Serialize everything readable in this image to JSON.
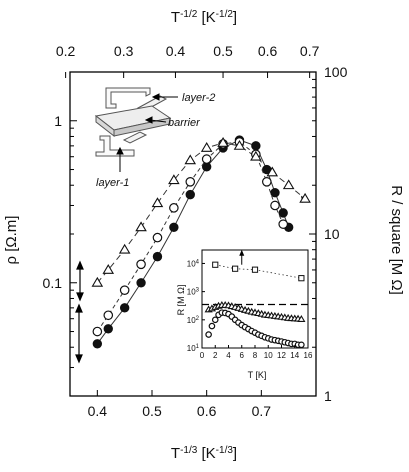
{
  "chart_data": {
    "type": "scatter",
    "main": {
      "x_bottom_label": "T^-1/3 [K^-1/3]",
      "x_bottom_range": [
        0.35,
        0.8
      ],
      "x_bottom_ticks": [
        "0.4",
        "0.5",
        "0.6",
        "0.7"
      ],
      "x_top_label": "T^-1/2 [K^-1/2]",
      "x_top_ticks": [
        "0.2",
        "0.3",
        "0.4",
        "0.5",
        "0.6",
        "0.7"
      ],
      "y_left_label": "ρ [Ω.m]",
      "y_left_scale": "log",
      "y_left_range": [
        0.02,
        2
      ],
      "y_left_ticks": [
        "0.1",
        "1"
      ],
      "y_right_label": "R / square [M Ω]",
      "y_right_scale": "log",
      "y_right_range": [
        1,
        100
      ],
      "y_right_ticks": [
        "1",
        "10",
        "100"
      ],
      "series": [
        {
          "marker": "filled-circle",
          "x": [
            0.4,
            0.42,
            0.45,
            0.48,
            0.51,
            0.54,
            0.57,
            0.6,
            0.63,
            0.66,
            0.69,
            0.71,
            0.725,
            0.74,
            0.75
          ],
          "y": [
            0.042,
            0.052,
            0.07,
            0.1,
            0.145,
            0.22,
            0.35,
            0.52,
            0.68,
            0.76,
            0.7,
            0.5,
            0.36,
            0.27,
            0.22
          ]
        },
        {
          "marker": "open-circle",
          "x": [
            0.4,
            0.42,
            0.45,
            0.48,
            0.51,
            0.54,
            0.57,
            0.6,
            0.63,
            0.66,
            0.69,
            0.71,
            0.725,
            0.74
          ],
          "y": [
            0.05,
            0.063,
            0.09,
            0.13,
            0.19,
            0.29,
            0.42,
            0.58,
            0.72,
            0.74,
            0.62,
            0.42,
            0.3,
            0.23
          ]
        },
        {
          "marker": "open-triangle",
          "x": [
            0.4,
            0.42,
            0.45,
            0.48,
            0.51,
            0.54,
            0.57,
            0.6,
            0.63,
            0.66,
            0.69,
            0.72,
            0.75,
            0.78
          ],
          "y": [
            0.1,
            0.12,
            0.16,
            0.22,
            0.31,
            0.43,
            0.57,
            0.68,
            0.73,
            0.7,
            0.6,
            0.48,
            0.4,
            0.33
          ]
        }
      ]
    },
    "inset": {
      "type": "scatter",
      "xlabel": "T [K]",
      "ylabel": "R [M Ω]",
      "xlim": [
        0,
        16
      ],
      "x_ticks": [
        "0",
        "2",
        "4",
        "6",
        "8",
        "10",
        "12",
        "14",
        "16"
      ],
      "y_scale": "log",
      "ylim": [
        10,
        30000
      ],
      "y_ticks": [
        "10^1",
        "10^2",
        "10^3",
        "10^4"
      ],
      "series": [
        {
          "marker": "open-square",
          "x": [
            2,
            5,
            8,
            15
          ],
          "y": [
            9000,
            6500,
            6000,
            3000
          ]
        },
        {
          "marker": "open-triangle",
          "x": [
            1,
            1.5,
            2,
            2.5,
            3,
            3.5,
            4,
            4.5,
            5,
            5.5,
            6,
            6.5,
            7,
            7.5,
            8,
            8.5,
            9,
            9.5,
            10,
            10.5,
            11,
            11.5,
            12,
            12.5,
            13,
            13.5,
            14,
            14.5,
            15
          ],
          "y": [
            230,
            250,
            280,
            310,
            330,
            330,
            320,
            300,
            280,
            260,
            240,
            220,
            205,
            190,
            180,
            170,
            160,
            150,
            145,
            140,
            135,
            130,
            125,
            120,
            115,
            112,
            110,
            108,
            105
          ]
        },
        {
          "marker": "open-circle",
          "x": [
            1,
            1.5,
            2,
            2.5,
            3,
            3.5,
            4,
            4.5,
            5,
            5.5,
            6,
            6.5,
            7,
            7.5,
            8,
            8.5,
            9,
            9.5,
            10,
            10.5,
            11,
            11.5,
            12,
            12.5,
            13,
            13.5,
            14,
            14.5,
            15
          ],
          "y": [
            30,
            60,
            100,
            150,
            180,
            175,
            160,
            130,
            100,
            80,
            65,
            55,
            47,
            40,
            35,
            30,
            27,
            24,
            22,
            20,
            19,
            18,
            17,
            16,
            15,
            14,
            14,
            13,
            13
          ]
        }
      ],
      "dashed_level": 350
    },
    "schematic_labels": {
      "layer2": "layer-2",
      "barrier": "barrier",
      "layer1": "layer-1"
    }
  }
}
